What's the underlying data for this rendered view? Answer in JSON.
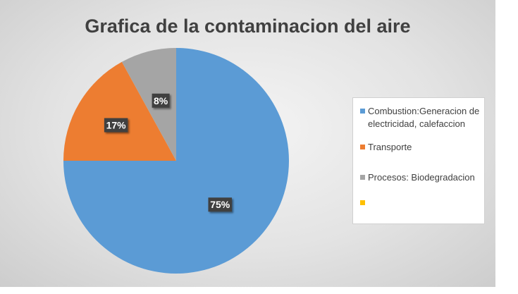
{
  "chart_data": {
    "type": "pie",
    "title": "Grafica de la contaminacion del aire",
    "slices": [
      {
        "label": "Combustion:Generacion de electricidad, calefaccion",
        "value": 75,
        "display": "75%",
        "color": "#5b9bd5"
      },
      {
        "label": "Transporte",
        "value": 17,
        "display": "17%",
        "color": "#ed7d31"
      },
      {
        "label": "Procesos: Biodegradacion",
        "value": 8,
        "display": "8%",
        "color": "#a5a5a5"
      },
      {
        "label": "",
        "value": 0,
        "display": "",
        "color": "#ffc000"
      }
    ],
    "legend_position": "right"
  }
}
